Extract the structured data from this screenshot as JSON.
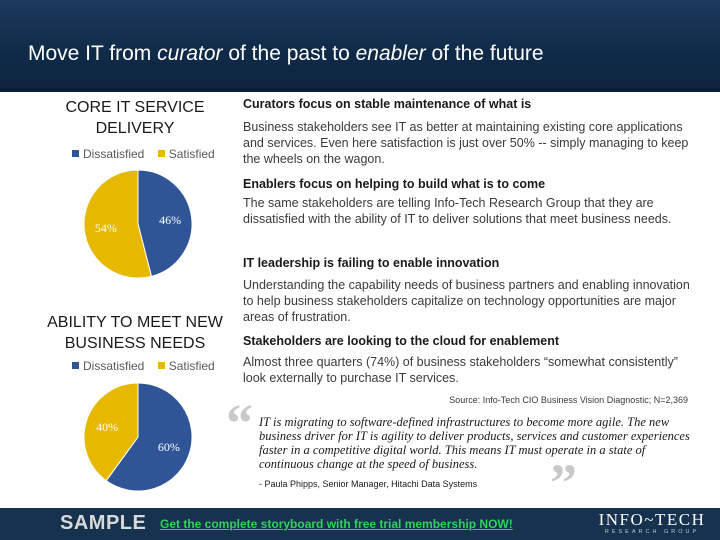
{
  "slide": {
    "title_parts": [
      "Move IT from ",
      "curator",
      " of the past to ",
      "enabler",
      " of the future"
    ]
  },
  "colors": {
    "dissatisfied": "#2f5597",
    "satisfied": "#e6b800",
    "header": "#14304f",
    "cta": "#2fd35a"
  },
  "chart_data": [
    {
      "type": "pie",
      "title": "CORE IT SERVICE DELIVERY",
      "legend_placement": "top",
      "categories": [
        "Dissatisfied",
        "Satisfied"
      ],
      "values": [
        46,
        54
      ],
      "labels": [
        "46%",
        "54%"
      ]
    },
    {
      "type": "pie",
      "title": "ABILITY TO MEET NEW BUSINESS NEEDS",
      "legend_placement": "top",
      "categories": [
        "Dissatisfied",
        "Satisfied"
      ],
      "values": [
        60,
        40
      ],
      "labels": [
        "60%",
        "40%"
      ]
    }
  ],
  "points": [
    {
      "heading": "Curators focus on stable maintenance of what is",
      "body": "Business stakeholders see IT as better at maintaining existing core applications and services. Even here satisfaction is just over 50% -- simply managing to keep the wheels on the wagon."
    },
    {
      "heading": "Enablers focus on helping to build what is to come",
      "body": "The same stakeholders are telling Info-Tech Research Group that they are dissatisfied with the ability of IT to deliver solutions that meet business needs."
    },
    {
      "heading": "IT leadership is failing to enable innovation",
      "body": "Understanding the capability needs of business partners and enabling innovation to help business stakeholders capitalize on technology opportunities are major areas of frustration."
    },
    {
      "heading": "Stakeholders are looking to the cloud for enablement",
      "body": "Almost three quarters (74%) of business stakeholders “somewhat consistently” look externally to purchase IT services."
    }
  ],
  "source": "Source: Info-Tech CIO Business Vision Diagnostic; N=2,369",
  "quote": {
    "open_mark": "“",
    "close_mark": "”",
    "text": "IT is migrating to software-defined infrastructures to become more agile. The new business driver for IT is agility to deliver products, services and customer experiences faster in a competitive digital world. This means IT must operate in a state of continuous change at the speed of business.",
    "attribution": "- Paula Phipps, Senior Manager, Hitachi Data Systems"
  },
  "footer": {
    "sample": "SAMPLE",
    "cta": "Get the complete storyboard with free trial membership NOW!",
    "logo_line1": "INFO~TECH",
    "logo_line2": "RESEARCH GROUP"
  }
}
